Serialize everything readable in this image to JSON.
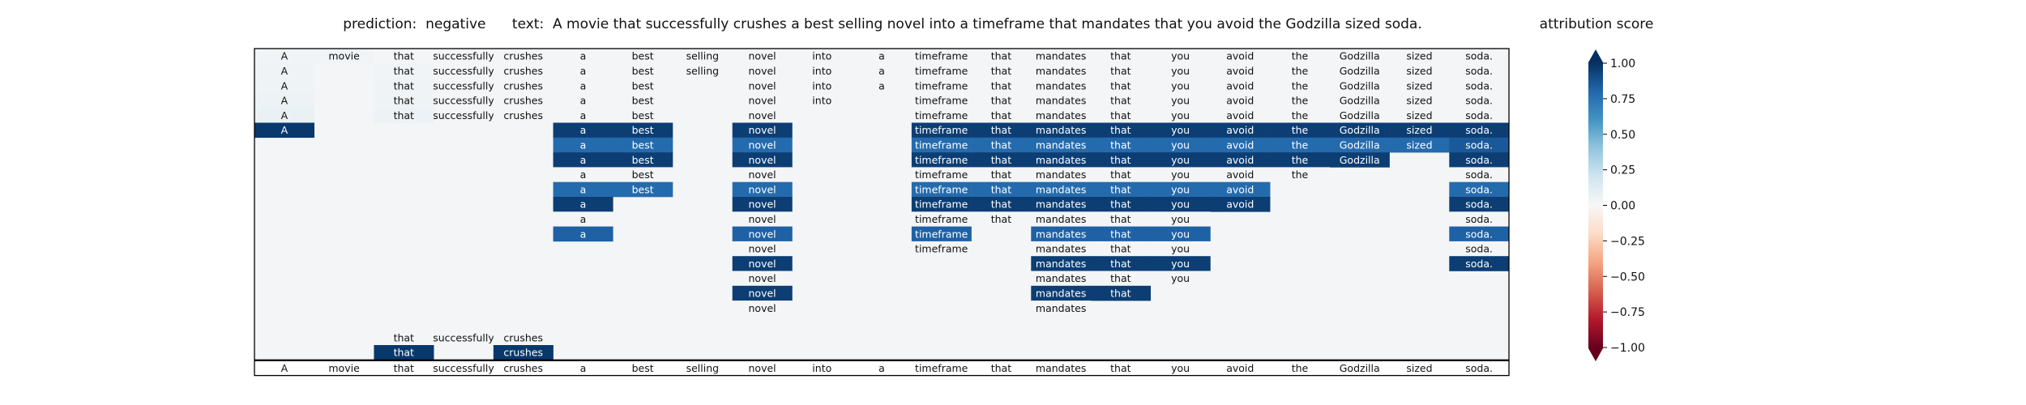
{
  "header": {
    "prediction_label": "prediction:",
    "prediction_value": "negative",
    "text_label": "text:",
    "text_value": "A movie that successfully crushes a best selling novel into a timeframe that mandates that you avoid the Godzilla sized soda."
  },
  "colorbar": {
    "title": "attribution score",
    "ticks": [
      "1.00",
      "0.75",
      "0.50",
      "0.25",
      "0.00",
      "−0.25",
      "−0.50",
      "−0.75",
      "−1.00"
    ],
    "colors": [
      "#053061",
      "#2166ac",
      "#4393c3",
      "#92c5de",
      "#d1e5f0",
      "#f7f7f7",
      "#fddbc7",
      "#f4a582",
      "#d6604d",
      "#b2182b",
      "#67001f"
    ]
  },
  "chart_data": {
    "type": "heatmap",
    "title": "prediction:  negative      text:  A movie that successfully crushes a best selling novel into a timeframe that mandates that you avoid the Godzilla sized soda.",
    "colorbar_label": "attribution score",
    "vmin": -1.0,
    "vmax": 1.0,
    "tokens": [
      "A",
      "movie",
      "that",
      "successfully",
      "crushes",
      "a",
      "best",
      "selling",
      "novel",
      "into",
      "a",
      "timeframe",
      "that",
      "mandates",
      "that",
      "you",
      "avoid",
      "the",
      "Godzilla",
      "sized",
      "soda."
    ],
    "rows": [
      {
        "visible": [
          1,
          1,
          1,
          1,
          1,
          1,
          1,
          1,
          1,
          1,
          1,
          1,
          1,
          1,
          1,
          1,
          1,
          1,
          1,
          1,
          1
        ],
        "values": [
          0.03,
          0.03,
          0.02,
          0.02,
          0.02,
          0.02,
          0.02,
          0.02,
          0.02,
          0.02,
          0.02,
          0.02,
          0.02,
          0.02,
          0.02,
          0.02,
          0.02,
          0.02,
          0.02,
          0.02,
          0.02
        ]
      },
      {
        "visible": [
          1,
          0,
          1,
          1,
          1,
          1,
          1,
          1,
          1,
          1,
          1,
          1,
          1,
          1,
          1,
          1,
          1,
          1,
          1,
          1,
          1
        ],
        "values": [
          0.04,
          0.02,
          0.03,
          0.02,
          0.02,
          0.02,
          0.02,
          0.02,
          0.02,
          0.02,
          0.02,
          0.02,
          0.02,
          0.02,
          0.02,
          0.02,
          0.02,
          0.02,
          0.02,
          0.02,
          0.02
        ]
      },
      {
        "visible": [
          1,
          0,
          1,
          1,
          1,
          1,
          1,
          0,
          1,
          1,
          1,
          1,
          1,
          1,
          1,
          1,
          1,
          1,
          1,
          1,
          1
        ],
        "values": [
          0.05,
          0.02,
          0.04,
          0.02,
          0.02,
          0.02,
          0.02,
          0.02,
          0.02,
          0.02,
          0.02,
          0.02,
          0.02,
          0.02,
          0.02,
          0.02,
          0.02,
          0.02,
          0.02,
          0.02,
          0.02
        ]
      },
      {
        "visible": [
          1,
          0,
          1,
          1,
          1,
          1,
          1,
          0,
          1,
          1,
          0,
          1,
          1,
          1,
          1,
          1,
          1,
          1,
          1,
          1,
          1
        ],
        "values": [
          0.06,
          0.02,
          0.05,
          0.02,
          0.02,
          0.02,
          0.02,
          0.02,
          0.02,
          0.02,
          0.02,
          0.02,
          0.02,
          0.02,
          0.02,
          0.02,
          0.02,
          0.02,
          0.02,
          0.02,
          0.02
        ]
      },
      {
        "visible": [
          1,
          0,
          1,
          1,
          1,
          1,
          1,
          0,
          1,
          0,
          0,
          1,
          1,
          1,
          1,
          1,
          1,
          1,
          1,
          1,
          1
        ],
        "values": [
          0.07,
          0.02,
          0.06,
          0.02,
          0.02,
          0.02,
          0.02,
          0.02,
          0.02,
          0.02,
          0.02,
          0.02,
          0.02,
          0.02,
          0.02,
          0.02,
          0.02,
          0.02,
          0.02,
          0.02,
          0.02
        ]
      },
      {
        "visible": [
          1,
          0,
          0,
          0,
          0,
          1,
          1,
          0,
          1,
          0,
          0,
          1,
          1,
          1,
          1,
          1,
          1,
          1,
          1,
          1,
          1
        ],
        "values": [
          0.97,
          0.02,
          0.02,
          0.02,
          0.02,
          0.95,
          0.95,
          0.02,
          0.95,
          0.02,
          0.02,
          0.95,
          0.95,
          0.95,
          0.95,
          0.95,
          0.95,
          0.95,
          0.95,
          0.95,
          0.95
        ]
      },
      {
        "visible": [
          0,
          0,
          0,
          0,
          0,
          1,
          1,
          0,
          1,
          0,
          0,
          1,
          1,
          1,
          1,
          1,
          1,
          1,
          1,
          1,
          1
        ],
        "values": [
          0,
          0,
          0,
          0,
          0,
          0.78,
          0.78,
          0.02,
          0.78,
          0.02,
          0.02,
          0.78,
          0.78,
          0.78,
          0.78,
          0.78,
          0.78,
          0.78,
          0.78,
          0.78,
          0.85
        ]
      },
      {
        "visible": [
          0,
          0,
          0,
          0,
          0,
          1,
          1,
          0,
          1,
          0,
          0,
          1,
          1,
          1,
          1,
          1,
          1,
          1,
          1,
          0,
          1
        ],
        "values": [
          0,
          0,
          0,
          0,
          0,
          0.95,
          0.95,
          0.02,
          0.95,
          0.02,
          0.02,
          0.95,
          0.95,
          0.95,
          0.95,
          0.95,
          0.95,
          0.95,
          0.95,
          0.02,
          0.95
        ]
      },
      {
        "visible": [
          0,
          0,
          0,
          0,
          0,
          1,
          1,
          0,
          1,
          0,
          0,
          1,
          1,
          1,
          1,
          1,
          1,
          1,
          0,
          0,
          1
        ],
        "values": [
          0,
          0,
          0,
          0,
          0,
          0.02,
          0.02,
          0.02,
          0.02,
          0.02,
          0.02,
          0.02,
          0.02,
          0.02,
          0.02,
          0.02,
          0.02,
          0.02,
          0.02,
          0.02,
          0.02
        ]
      },
      {
        "visible": [
          0,
          0,
          0,
          0,
          0,
          1,
          1,
          0,
          1,
          0,
          0,
          1,
          1,
          1,
          1,
          1,
          1,
          0,
          0,
          0,
          1
        ],
        "values": [
          0,
          0,
          0,
          0,
          0,
          0.78,
          0.78,
          0.02,
          0.78,
          0.02,
          0.02,
          0.78,
          0.78,
          0.78,
          0.78,
          0.78,
          0.78,
          0.02,
          0.02,
          0.02,
          0.78
        ]
      },
      {
        "visible": [
          0,
          0,
          0,
          0,
          0,
          1,
          0,
          0,
          1,
          0,
          0,
          1,
          1,
          1,
          1,
          1,
          1,
          0,
          0,
          0,
          1
        ],
        "values": [
          0,
          0,
          0,
          0,
          0,
          0.95,
          0.02,
          0.02,
          0.95,
          0.02,
          0.02,
          0.95,
          0.95,
          0.95,
          0.95,
          0.95,
          0.95,
          0.02,
          0.02,
          0.02,
          0.95
        ]
      },
      {
        "visible": [
          0,
          0,
          0,
          0,
          0,
          1,
          0,
          0,
          1,
          0,
          0,
          1,
          1,
          1,
          1,
          1,
          0,
          0,
          0,
          0,
          1
        ],
        "values": [
          0,
          0,
          0,
          0,
          0,
          0.02,
          0.02,
          0.02,
          0.02,
          0.02,
          0.02,
          0.02,
          0.02,
          0.02,
          0.02,
          0.02,
          0.02,
          0.02,
          0.02,
          0.02,
          0.02
        ]
      },
      {
        "visible": [
          0,
          0,
          0,
          0,
          0,
          1,
          0,
          0,
          1,
          0,
          0,
          1,
          0,
          1,
          1,
          1,
          0,
          0,
          0,
          0,
          1
        ],
        "values": [
          0,
          0,
          0,
          0,
          0,
          0.82,
          0.02,
          0.02,
          0.82,
          0.02,
          0.02,
          0.82,
          0.02,
          0.82,
          0.82,
          0.82,
          0.02,
          0.02,
          0.02,
          0.02,
          0.82
        ]
      },
      {
        "visible": [
          0,
          0,
          0,
          0,
          0,
          0,
          0,
          0,
          1,
          0,
          0,
          1,
          0,
          1,
          1,
          1,
          0,
          0,
          0,
          0,
          1
        ],
        "values": [
          0,
          0,
          0,
          0,
          0,
          0.02,
          0.02,
          0.02,
          0.02,
          0.02,
          0.02,
          0.02,
          0.02,
          0.02,
          0.02,
          0.02,
          0.02,
          0.02,
          0.02,
          0.02,
          0.02
        ]
      },
      {
        "visible": [
          0,
          0,
          0,
          0,
          0,
          0,
          0,
          0,
          1,
          0,
          0,
          0,
          0,
          1,
          1,
          1,
          0,
          0,
          0,
          0,
          1
        ],
        "values": [
          0,
          0,
          0,
          0,
          0,
          0.02,
          0.02,
          0.02,
          0.95,
          0.02,
          0.02,
          0.02,
          0.02,
          0.95,
          0.95,
          0.95,
          0.02,
          0.02,
          0.02,
          0.02,
          0.95
        ]
      },
      {
        "visible": [
          0,
          0,
          0,
          0,
          0,
          0,
          0,
          0,
          1,
          0,
          0,
          0,
          0,
          1,
          1,
          1,
          0,
          0,
          0,
          0,
          0
        ],
        "values": [
          0,
          0,
          0,
          0,
          0,
          0.02,
          0.02,
          0.02,
          0.02,
          0.02,
          0.02,
          0.02,
          0.02,
          0.02,
          0.02,
          0.02,
          0.02,
          0.02,
          0.02,
          0.02,
          0.02
        ]
      },
      {
        "visible": [
          0,
          0,
          0,
          0,
          0,
          0,
          0,
          0,
          1,
          0,
          0,
          0,
          0,
          1,
          1,
          0,
          0,
          0,
          0,
          0,
          0
        ],
        "values": [
          0,
          0,
          0,
          0,
          0,
          0.02,
          0.02,
          0.02,
          0.95,
          0.02,
          0.02,
          0.02,
          0.02,
          0.95,
          0.95,
          0.02,
          0.02,
          0.02,
          0.02,
          0.02,
          0.02
        ]
      },
      {
        "visible": [
          0,
          0,
          0,
          0,
          0,
          0,
          0,
          0,
          1,
          0,
          0,
          0,
          0,
          1,
          0,
          0,
          0,
          0,
          0,
          0,
          0
        ],
        "values": [
          0,
          0,
          0,
          0,
          0,
          0.02,
          0.02,
          0.02,
          0.02,
          0.02,
          0.02,
          0.02,
          0.02,
          0.02,
          0.02,
          0.02,
          0.02,
          0.02,
          0.02,
          0.02,
          0.02
        ]
      },
      {
        "visible": [
          0,
          0,
          0,
          0,
          0,
          0,
          0,
          0,
          0,
          0,
          0,
          0,
          0,
          0,
          0,
          0,
          0,
          0,
          0,
          0,
          0
        ],
        "values": [
          0.02,
          0.02,
          0.02,
          0.02,
          0.02,
          0.02,
          0.02,
          0.02,
          0.02,
          0.02,
          0.02,
          0.02,
          0.02,
          0.02,
          0.02,
          0.02,
          0.02,
          0.02,
          0.02,
          0.02,
          0.02
        ]
      },
      {
        "visible": [
          0,
          0,
          1,
          1,
          1,
          0,
          0,
          0,
          0,
          0,
          0,
          0,
          0,
          0,
          0,
          0,
          0,
          0,
          0,
          0,
          0
        ],
        "values": [
          0.02,
          0.02,
          0.02,
          0.02,
          0.02,
          0.02,
          0.02,
          0.02,
          0.02,
          0.02,
          0.02,
          0.02,
          0.02,
          0.02,
          0.02,
          0.02,
          0.02,
          0.02,
          0.02,
          0.02,
          0.02
        ]
      },
      {
        "visible": [
          0,
          0,
          1,
          0,
          1,
          0,
          0,
          0,
          0,
          0,
          0,
          0,
          0,
          0,
          0,
          0,
          0,
          0,
          0,
          0,
          0
        ],
        "values": [
          0.02,
          0.02,
          0.97,
          0.02,
          0.97,
          0.02,
          0.02,
          0.02,
          0.02,
          0.02,
          0.02,
          0.02,
          0.02,
          0.02,
          0.02,
          0.02,
          0.02,
          0.02,
          0.02,
          0.02,
          0.02
        ]
      },
      {
        "visible": [
          1,
          1,
          1,
          1,
          1,
          1,
          1,
          1,
          1,
          1,
          1,
          1,
          1,
          1,
          1,
          1,
          1,
          1,
          1,
          1,
          1
        ],
        "values": [
          0,
          0,
          0,
          0,
          0,
          0,
          0,
          0,
          0,
          0,
          0,
          0,
          0,
          0,
          0,
          0,
          0,
          0,
          0,
          0,
          0
        ],
        "style": "reference"
      }
    ]
  }
}
